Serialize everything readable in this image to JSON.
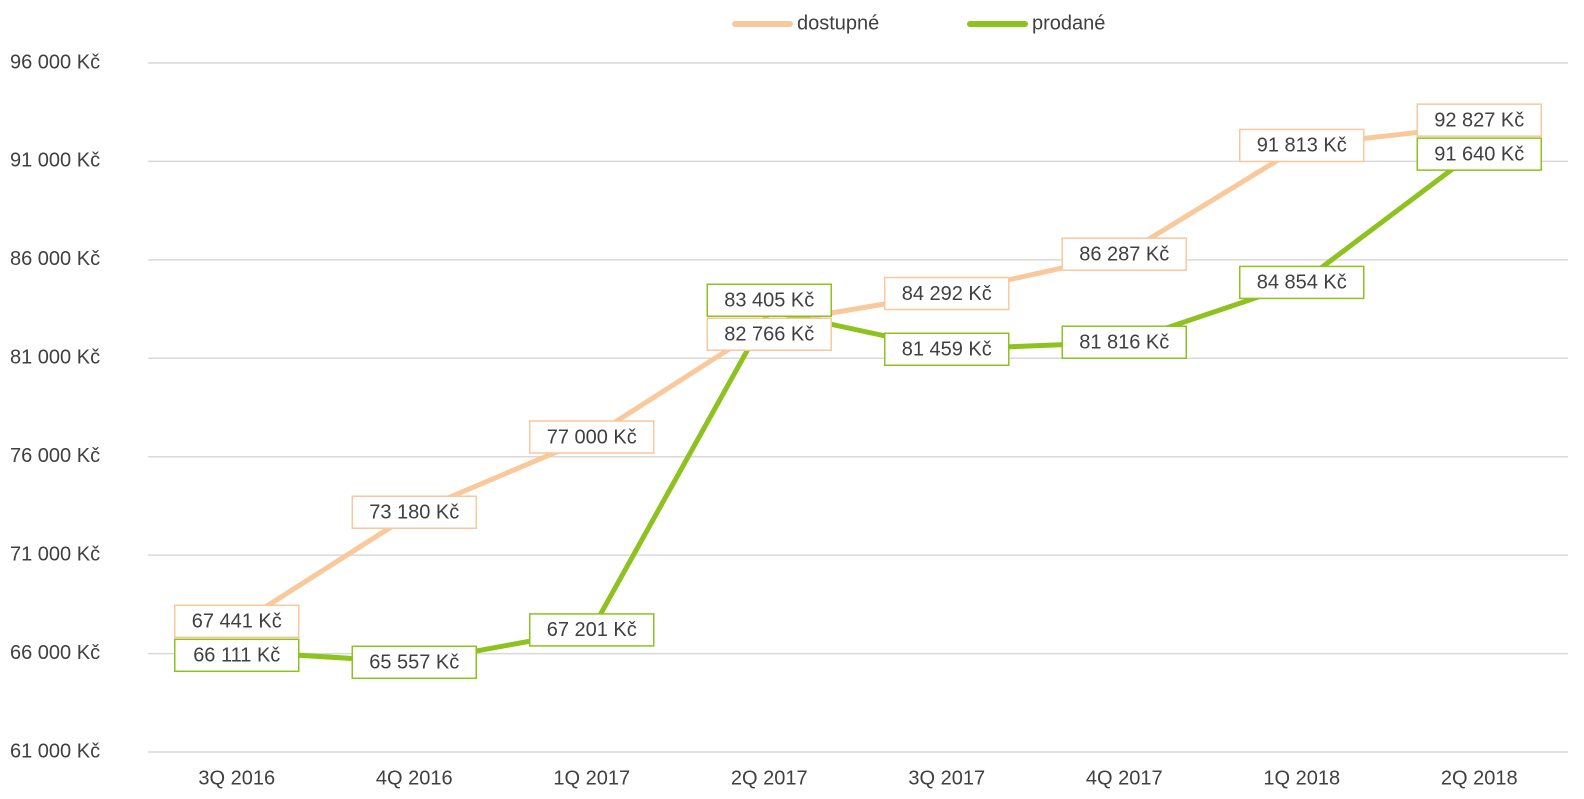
{
  "chart_data": {
    "type": "line",
    "categories": [
      "3Q 2016",
      "4Q 2016",
      "1Q 2017",
      "2Q 2017",
      "3Q 2017",
      "4Q 2017",
      "1Q 2018",
      "2Q 2018"
    ],
    "series": [
      {
        "name": "dostupné",
        "color": "#f9c89b",
        "values": [
          67441,
          73180,
          77000,
          82766,
          84292,
          86287,
          91813,
          92827
        ],
        "value_labels": [
          "67 441 Kč",
          "73 180 Kč",
          "77 000 Kč",
          "82 766 Kč",
          "84 292 Kč",
          "86 287 Kč",
          "91 813 Kč",
          "92 827 Kč"
        ]
      },
      {
        "name": "prodané",
        "color": "#8dc21f",
        "values": [
          66111,
          65557,
          67201,
          83405,
          81459,
          81816,
          84854,
          91640
        ],
        "value_labels": [
          "66 111 Kč",
          "65 557 Kč",
          "67 201 Kč",
          "83 405 Kč",
          "81 459 Kč",
          "81 816 Kč",
          "84 854 Kč",
          "91 640 Kč"
        ]
      }
    ],
    "ylim": [
      61000,
      96000
    ],
    "yticks": [
      {
        "value": 61000,
        "label": "61 000 Kč"
      },
      {
        "value": 66000,
        "label": "66 000 Kč"
      },
      {
        "value": 71000,
        "label": "71 000 Kč"
      },
      {
        "value": 76000,
        "label": "76 000 Kč"
      },
      {
        "value": 81000,
        "label": "81 000 Kč"
      },
      {
        "value": 86000,
        "label": "86 000 Kč"
      },
      {
        "value": 91000,
        "label": "91 000 Kč"
      },
      {
        "value": 96000,
        "label": "96 000 Kč"
      }
    ],
    "grid": true,
    "legend": "top"
  }
}
